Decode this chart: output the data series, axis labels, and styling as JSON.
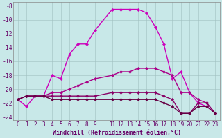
{
  "xlabel": "Windchill (Refroidissement éolien,°C)",
  "bg_color": "#c8e8e8",
  "grid_color": "#a0c0c0",
  "xlim": [
    -0.5,
    23.5
  ],
  "ylim": [
    -24.5,
    -7.5
  ],
  "yticks": [
    -24,
    -22,
    -20,
    -18,
    -16,
    -14,
    -12,
    -10,
    -8
  ],
  "xticks": [
    0,
    1,
    2,
    3,
    4,
    5,
    6,
    7,
    8,
    9,
    11,
    12,
    13,
    14,
    15,
    16,
    17,
    18,
    19,
    20,
    21,
    22,
    23
  ],
  "series": [
    {
      "x": [
        0,
        1,
        2,
        3,
        4,
        5,
        6,
        7,
        8,
        9,
        11,
        12,
        13,
        14,
        15,
        16,
        17,
        18,
        19,
        20,
        21,
        22,
        23
      ],
      "y": [
        -21.5,
        -22.5,
        -21.0,
        -21.0,
        -18.0,
        -18.5,
        -15.0,
        -13.5,
        -13.5,
        -11.5,
        -8.5,
        -8.5,
        -8.5,
        -8.5,
        -9.0,
        -11.0,
        -13.5,
        -18.5,
        -17.5,
        -20.5,
        -22.0,
        -22.5,
        -23.5
      ],
      "color": "#cc00bb",
      "lw": 1.0
    },
    {
      "x": [
        0,
        1,
        2,
        3,
        4,
        5,
        6,
        7,
        8,
        9,
        11,
        12,
        13,
        14,
        15,
        16,
        17,
        18,
        19,
        20,
        21,
        22,
        23
      ],
      "y": [
        -21.5,
        -21.0,
        -21.0,
        -21.0,
        -20.5,
        -20.5,
        -20.0,
        -19.5,
        -19.0,
        -18.5,
        -18.0,
        -17.5,
        -17.5,
        -17.0,
        -17.0,
        -17.0,
        -17.5,
        -18.0,
        -20.5,
        -20.5,
        -21.5,
        -22.0,
        -23.5
      ],
      "color": "#aa0088",
      "lw": 1.0
    },
    {
      "x": [
        0,
        1,
        2,
        3,
        4,
        5,
        6,
        7,
        8,
        9,
        11,
        12,
        13,
        14,
        15,
        16,
        17,
        18,
        19,
        20,
        21,
        22,
        23
      ],
      "y": [
        -21.5,
        -21.0,
        -21.0,
        -21.0,
        -21.0,
        -21.0,
        -21.0,
        -21.0,
        -21.0,
        -21.0,
        -20.5,
        -20.5,
        -20.5,
        -20.5,
        -20.5,
        -20.5,
        -21.0,
        -21.5,
        -23.5,
        -23.5,
        -22.0,
        -22.0,
        -23.5
      ],
      "color": "#880066",
      "lw": 1.0
    },
    {
      "x": [
        0,
        1,
        2,
        3,
        4,
        5,
        6,
        7,
        8,
        9,
        11,
        12,
        13,
        14,
        15,
        16,
        17,
        18,
        19,
        20,
        21,
        22,
        23
      ],
      "y": [
        -21.5,
        -21.0,
        -21.0,
        -21.0,
        -21.5,
        -21.5,
        -21.5,
        -21.5,
        -21.5,
        -21.5,
        -21.5,
        -21.5,
        -21.5,
        -21.5,
        -21.5,
        -21.5,
        -22.0,
        -22.5,
        -23.5,
        -23.5,
        -22.5,
        -22.5,
        -23.5
      ],
      "color": "#660044",
      "lw": 1.0
    }
  ],
  "tick_color": "#660066",
  "tick_fontsize": 5.5,
  "xlabel_fontsize": 6.0
}
